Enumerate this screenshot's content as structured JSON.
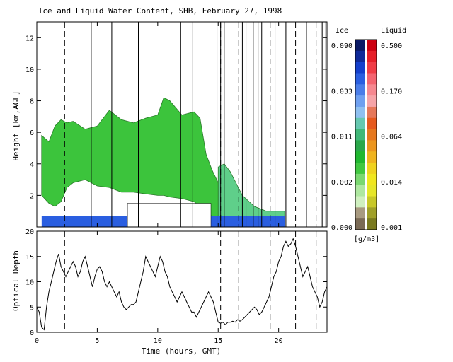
{
  "chart_data": [
    {
      "type": "heatmap",
      "title": "Ice and Liquid Water Content, SHB, February 27, 1998",
      "ylabel": "Height [km,AGL]",
      "xlim": [
        0,
        24
      ],
      "ylim": [
        0,
        13
      ],
      "yticks": [
        "2",
        "4",
        "6",
        "8",
        "10",
        "12"
      ],
      "colorbar": {
        "ice_label": "Ice",
        "liquid_label": "Liquid",
        "unit": "[g/m3]",
        "ice_ticks": [
          "0.090",
          "0.033",
          "0.011",
          "0.002",
          "0.000"
        ],
        "liquid_ticks": [
          "0.500",
          "0.170",
          "0.064",
          "0.014",
          "0.001"
        ],
        "ice_colors": [
          "#0a1a66",
          "#0f2a99",
          "#143fcc",
          "#2a5ee0",
          "#4a7de8",
          "#6fa0f0",
          "#8fc0f0",
          "#66c8b0",
          "#40b878",
          "#2aa84a",
          "#20b830",
          "#40c840",
          "#7ad870",
          "#aee8a0",
          "#d0f0c0",
          "#a89a80",
          "#7a6a55"
        ],
        "liquid_colors": [
          "#cc0010",
          "#e61e28",
          "#f03c46",
          "#f46470",
          "#f68890",
          "#f6a4a8",
          "#e6785a",
          "#e65a1e",
          "#e6781e",
          "#ec961e",
          "#f0b41e",
          "#f0d21e",
          "#f0e61e",
          "#e6e628",
          "#c8c828",
          "#a0a028",
          "#7a7a1e"
        ],
        "geometry_note": "colorbar swatches ordered top to bottom"
      },
      "cloud_layer_upper": {
        "x": [
          0.4,
          1,
          1.5,
          2,
          2.5,
          3,
          4,
          5,
          6,
          7,
          8,
          9,
          10,
          10.5,
          11,
          12,
          13,
          13.5,
          14,
          14.5,
          15,
          15.3
        ],
        "top": [
          5.8,
          5.4,
          6.4,
          6.8,
          6.6,
          6.7,
          6.2,
          6.4,
          7.4,
          6.8,
          6.6,
          6.9,
          7.1,
          8.2,
          8.0,
          7.1,
          7.3,
          6.9,
          4.6,
          3.6,
          2.8,
          2.4
        ],
        "bottom": [
          2.0,
          1.5,
          1.3,
          1.6,
          2.5,
          2.8,
          3.0,
          2.6,
          2.5,
          2.2,
          2.2,
          2.1,
          2.0,
          2.0,
          1.9,
          1.8,
          1.6,
          1.3,
          0.8,
          0.7,
          0.5,
          0.8
        ]
      },
      "cloud_layer_lower": {
        "x": [
          15,
          15.5,
          16,
          17,
          18,
          19,
          20,
          20.5
        ],
        "top": [
          3.8,
          4.0,
          3.5,
          2.0,
          1.3,
          1.0,
          1.0,
          1.0
        ],
        "bottom": [
          0.6,
          0.5,
          0.3,
          0.3,
          0.3,
          0.3,
          0.3,
          0.3
        ]
      },
      "missing_data_interval": {
        "x": [
          7.5,
          14.4
        ],
        "height": [
          0,
          1.5
        ]
      },
      "cloud_tops_secondary": {
        "x": [
          6.2,
          7.5
        ],
        "y": [
          7.0,
          7.4
        ]
      },
      "vertical_marker_times": [
        4.5,
        6.2,
        8.4,
        11.9,
        12.9,
        14.9,
        15.2,
        15.5,
        17.0,
        17.3,
        17.9,
        18.3,
        18.6,
        19.7,
        20.6,
        22.3,
        23.6,
        23.9
      ],
      "dashed_marker_times": [
        2.3,
        15.2,
        16.7,
        19.3,
        21.4,
        23.1
      ]
    },
    {
      "type": "line",
      "xlabel": "Time (hours, GMT)",
      "ylabel": "Optical Depth",
      "xlim": [
        0,
        24
      ],
      "ylim": [
        0,
        20
      ],
      "xticks": [
        "0",
        "5",
        "10",
        "15",
        "20"
      ],
      "yticks": [
        "0",
        "5",
        "10",
        "15",
        "20"
      ],
      "x": [
        0,
        0.2,
        0.4,
        0.6,
        0.8,
        1.0,
        1.2,
        1.4,
        1.6,
        1.8,
        2.0,
        2.2,
        2.4,
        2.6,
        2.8,
        3.0,
        3.2,
        3.4,
        3.6,
        3.8,
        4.0,
        4.2,
        4.4,
        4.6,
        4.8,
        5.0,
        5.2,
        5.4,
        5.6,
        5.8,
        6.0,
        6.2,
        6.4,
        6.6,
        6.8,
        7.0,
        7.2,
        7.4,
        7.6,
        7.8,
        8.0,
        8.2,
        8.4,
        8.6,
        8.8,
        9.0,
        9.2,
        9.4,
        9.6,
        9.8,
        10.0,
        10.2,
        10.4,
        10.6,
        10.8,
        11.0,
        11.2,
        11.4,
        11.6,
        11.8,
        12.0,
        12.2,
        12.4,
        12.6,
        12.8,
        13.0,
        13.2,
        13.4,
        13.6,
        13.8,
        14.0,
        14.2,
        14.4,
        14.6,
        14.8,
        15.0,
        15.2,
        15.4,
        15.6,
        15.8,
        16.0,
        16.2,
        16.4,
        16.6,
        16.8,
        17.0,
        17.2,
        17.4,
        17.6,
        17.8,
        18.0,
        18.2,
        18.4,
        18.6,
        18.8,
        19.0,
        19.2,
        19.4,
        19.6,
        19.8,
        20.0,
        20.2,
        20.4,
        20.6,
        20.8,
        21.0,
        21.2,
        21.4,
        21.6,
        21.8,
        22.0,
        22.2,
        22.4,
        22.6,
        22.8,
        23.0,
        23.2,
        23.4,
        23.6,
        23.8,
        24.0
      ],
      "values": [
        5,
        4,
        1,
        0.5,
        5,
        8,
        10,
        12,
        14,
        15.5,
        13,
        12,
        11,
        12,
        13,
        14,
        13,
        11,
        12,
        14,
        15,
        13,
        11,
        9,
        11,
        12.5,
        13,
        12,
        10,
        9,
        10,
        9,
        8,
        7,
        8,
        6,
        5,
        4.5,
        5,
        5.5,
        5.5,
        6,
        8,
        10,
        12,
        15,
        14,
        13,
        12,
        11,
        13,
        15,
        14,
        12,
        11,
        9,
        8,
        7,
        6,
        7,
        8,
        7,
        6,
        5,
        4,
        4,
        3,
        4,
        5,
        6,
        7,
        8,
        7,
        6,
        4,
        2,
        1.8,
        2,
        1.5,
        2,
        2,
        2.2,
        2,
        2.5,
        2.2,
        2.5,
        3,
        3.5,
        4,
        4.5,
        5,
        4.5,
        3.5,
        4,
        5,
        6,
        7,
        9,
        11,
        12,
        14,
        15,
        17,
        18,
        17,
        17.5,
        18.5,
        17,
        15,
        13,
        11,
        12,
        13,
        11,
        9,
        8,
        7,
        5,
        6,
        8,
        9
      ]
    }
  ]
}
